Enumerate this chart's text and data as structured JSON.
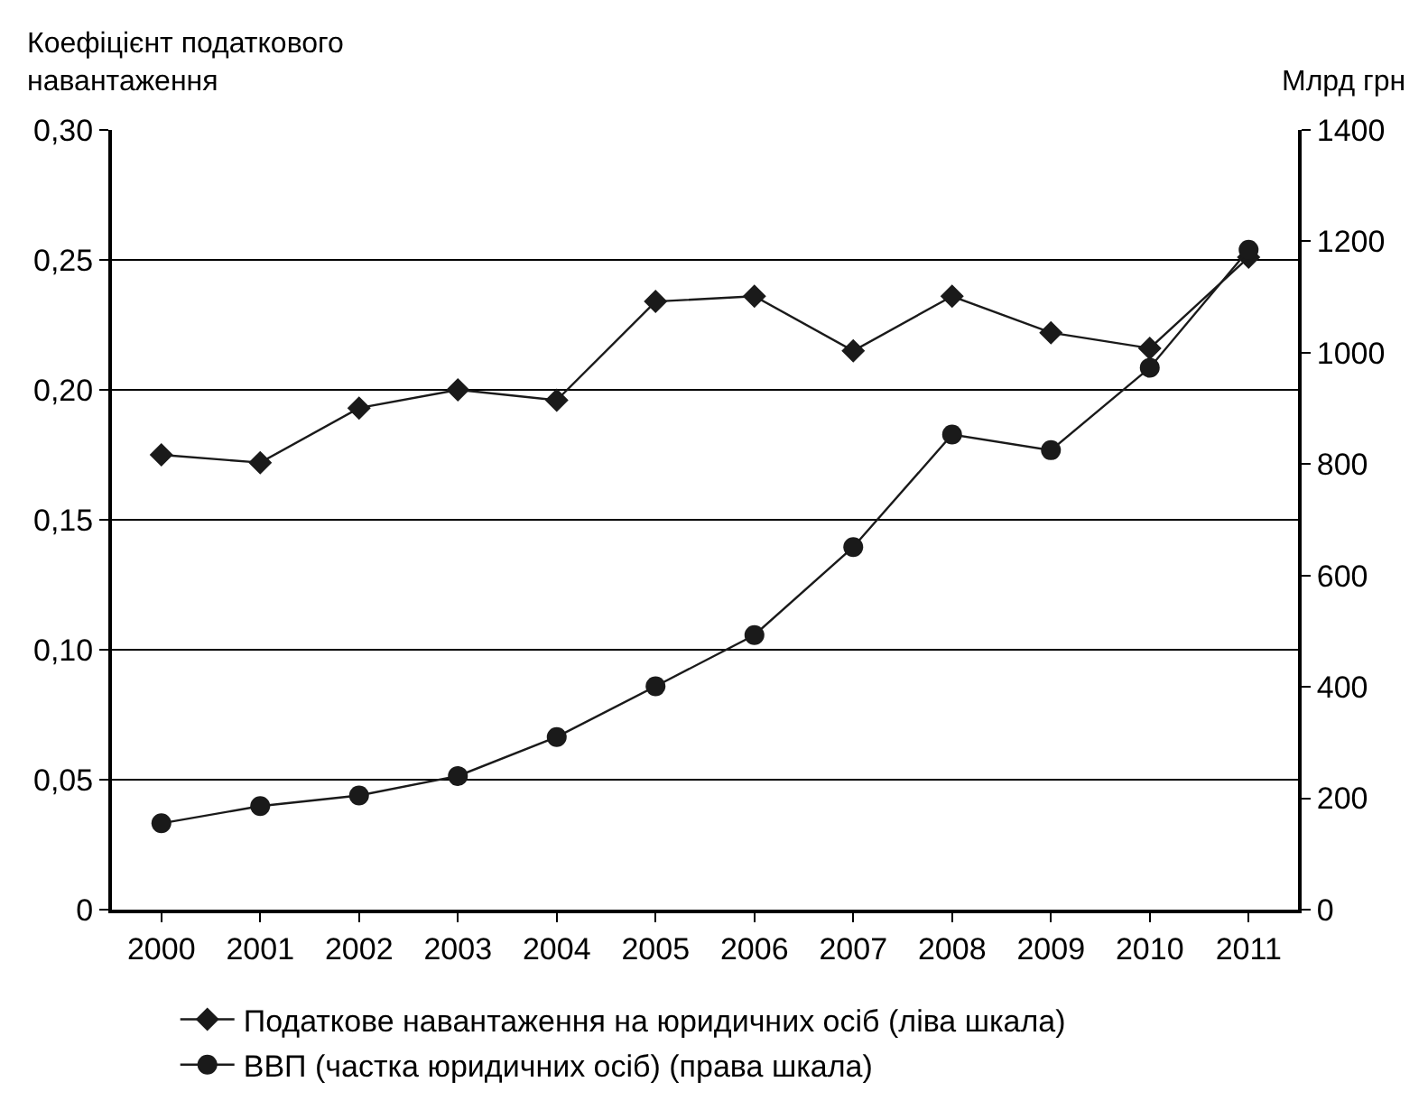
{
  "chart_data": {
    "type": "line",
    "ylabel": "Коефіцієнт податкового навантаження",
    "y2label": "Млрд грн",
    "categories": [
      "2000",
      "2001",
      "2002",
      "2003",
      "2004",
      "2005",
      "2006",
      "2007",
      "2008",
      "2009",
      "2010",
      "2011"
    ],
    "series": [
      {
        "name": "Податкове навантаження на юридичних осіб (ліва шкала)",
        "color": "#1a1a1a",
        "marker": "diamond",
        "values": [
          0.175,
          0.172,
          0.193,
          0.2,
          0.196,
          0.234,
          0.236,
          0.215,
          0.236,
          0.222,
          0.216,
          0.251
        ]
      },
      {
        "name": "ВВП (частка юридичних осіб) (права шкала)",
        "color": "#1a1a1a",
        "marker": "circle",
        "axis": "y2",
        "values": [
          155,
          186,
          205,
          240,
          310,
          401,
          493,
          651,
          853,
          825,
          973,
          1185
        ]
      }
    ],
    "ylim": [
      0,
      0.3
    ],
    "yticks": [
      0,
      {
        "value": 0.05,
        "label": "0,05"
      },
      {
        "value": 0.1,
        "label": "0,10"
      },
      {
        "value": 0.15,
        "label": "0,15"
      },
      {
        "value": 0.2,
        "label": "0,20"
      },
      {
        "value": 0.25,
        "label": "0,25"
      },
      {
        "value": 0.3,
        "label": "0,30"
      }
    ],
    "y2lim": [
      0,
      1400
    ],
    "y2ticks": [
      0,
      200,
      400,
      600,
      800,
      1000,
      1200,
      1400
    ],
    "grid": "y",
    "legend": "bottom",
    "line_style": "solid"
  }
}
